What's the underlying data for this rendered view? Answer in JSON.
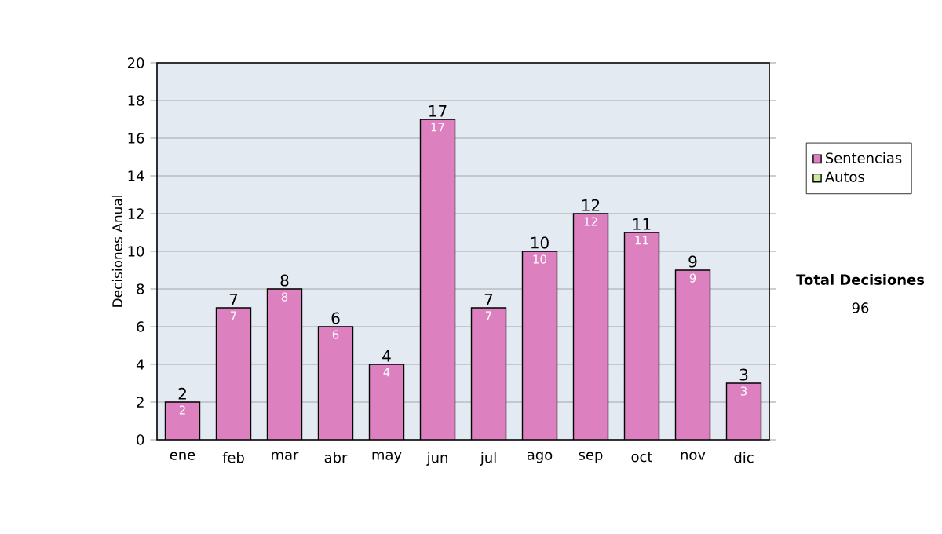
{
  "chart_data": {
    "type": "bar",
    "ylabel": "Decisiones Anual",
    "categories": [
      "ene",
      "feb",
      "mar",
      "abr",
      "may",
      "jun",
      "jul",
      "ago",
      "sep",
      "oct",
      "nov",
      "dic"
    ],
    "series": [
      {
        "name": "Sentencias",
        "color": "#dd80c0",
        "values": [
          2,
          7,
          8,
          6,
          4,
          17,
          7,
          10,
          12,
          11,
          9,
          3
        ]
      },
      {
        "name": "Autos",
        "color": "#cce89a",
        "values": [
          null,
          null,
          null,
          null,
          null,
          null,
          null,
          null,
          null,
          null,
          null,
          null
        ]
      }
    ],
    "data_labels": true,
    "totals": [
      "2",
      "7",
      "8",
      "6",
      "4",
      "17",
      "7",
      "10",
      "12",
      "11",
      "9",
      "3"
    ],
    "ylim": [
      0,
      20
    ],
    "yticks": [
      0,
      2,
      4,
      6,
      8,
      10,
      12,
      14,
      16,
      18,
      20
    ],
    "grid": "y",
    "legend": "right",
    "annotations": [
      "**Total Decisiones**",
      "96"
    ]
  }
}
